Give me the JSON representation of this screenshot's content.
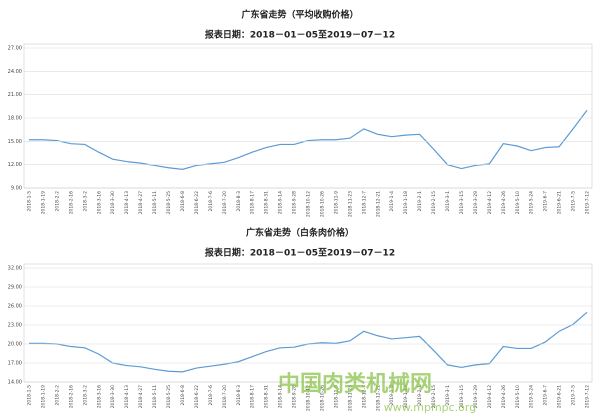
{
  "chart_data": [
    {
      "type": "line",
      "title": "广东省走势（平均收购价格）",
      "subtitle": "报表日期：2018－01－05至2019－07－12",
      "categories": [
        "2018-1-5",
        "2018-1-19",
        "2018-2-2",
        "2018-2-16",
        "2018-3-2",
        "2018-3-16",
        "2018-3-30",
        "2018-4-13",
        "2018-4-27",
        "2018-5-11",
        "2018-5-25",
        "2018-6-8",
        "2018-6-22",
        "2018-7-6",
        "2018-7-20",
        "2018-8-3",
        "2018-8-17",
        "2018-8-31",
        "2018-9-14",
        "2018-9-28",
        "2018-10-12",
        "2018-10-26",
        "2018-11-9",
        "2018-11-23",
        "2018-12-7",
        "2018-12-21",
        "2019-1-4",
        "2019-1-18",
        "2019-2-1",
        "2019-2-15",
        "2019-3-1",
        "2019-3-15",
        "2019-3-29",
        "2019-4-12",
        "2019-4-26",
        "2019-5-10",
        "2019-5-24",
        "2019-6-7",
        "2019-6-21",
        "2019-7-5",
        "2019-7-12"
      ],
      "series": [
        {
          "name": "平均收购价格",
          "color": "#5b9bd5",
          "values": [
            15.2,
            15.2,
            15.1,
            14.7,
            14.6,
            13.6,
            12.7,
            12.4,
            12.2,
            11.9,
            11.6,
            11.4,
            11.9,
            12.1,
            12.3,
            12.9,
            13.6,
            14.2,
            14.6,
            14.6,
            15.1,
            15.2,
            15.2,
            15.4,
            16.6,
            15.9,
            15.6,
            15.8,
            15.9,
            14.0,
            12.0,
            11.5,
            11.9,
            12.1,
            14.7,
            14.4,
            13.8,
            14.2,
            14.3,
            16.6,
            19.0
          ]
        }
      ],
      "ylim": [
        9,
        27
      ],
      "yticks": [
        {
          "value": 9,
          "label": "9.00"
        },
        {
          "value": 12,
          "label": "12.00"
        },
        {
          "value": 15,
          "label": "15.00"
        },
        {
          "value": 18,
          "label": "18.00"
        },
        {
          "value": 21,
          "label": "21.00"
        },
        {
          "value": 24,
          "label": "24.00"
        },
        {
          "value": 27,
          "label": "27.00"
        }
      ],
      "grid": true
    },
    {
      "type": "line",
      "title": "广东省走势（白条肉价格）",
      "subtitle": "报表日期：2018－01－05至2019－07－12",
      "categories": [
        "2018-1-5",
        "2018-1-19",
        "2018-2-2",
        "2018-2-16",
        "2018-3-2",
        "2018-3-16",
        "2018-3-30",
        "2018-4-13",
        "2018-4-27",
        "2018-5-11",
        "2018-5-25",
        "2018-6-8",
        "2018-6-22",
        "2018-7-6",
        "2018-7-20",
        "2018-8-3",
        "2018-8-17",
        "2018-8-31",
        "2018-9-14",
        "2018-9-28",
        "2018-10-12",
        "2018-10-26",
        "2018-11-9",
        "2018-11-23",
        "2018-12-7",
        "2018-12-21",
        "2019-1-4",
        "2019-1-18",
        "2019-2-1",
        "2019-2-15",
        "2019-3-1",
        "2019-3-15",
        "2019-3-29",
        "2019-4-12",
        "2019-4-26",
        "2019-5-10",
        "2019-5-24",
        "2019-6-7",
        "2019-6-21",
        "2019-7-5",
        "2019-7-12"
      ],
      "series": [
        {
          "name": "白条肉价格",
          "color": "#5b9bd5",
          "values": [
            20.1,
            20.1,
            20.0,
            19.6,
            19.4,
            18.4,
            17.0,
            16.6,
            16.4,
            16.0,
            15.7,
            15.6,
            16.2,
            16.5,
            16.8,
            17.2,
            18.0,
            18.8,
            19.4,
            19.5,
            20.0,
            20.2,
            20.1,
            20.5,
            22.0,
            21.3,
            20.8,
            21.0,
            21.2,
            19.0,
            16.7,
            16.3,
            16.7,
            16.9,
            19.6,
            19.3,
            19.3,
            20.3,
            22.0,
            23.1,
            25.0
          ]
        }
      ],
      "ylim": [
        14,
        32
      ],
      "yticks": [
        {
          "value": 14,
          "label": "14.00"
        },
        {
          "value": 17,
          "label": "17.00"
        },
        {
          "value": 20,
          "label": "20.00"
        },
        {
          "value": 23,
          "label": "23.00"
        },
        {
          "value": 26,
          "label": "26.00"
        },
        {
          "value": 29,
          "label": "29.00"
        },
        {
          "value": 32,
          "label": "32.00"
        }
      ],
      "grid": true
    }
  ],
  "watermark": {
    "name": "中国肉类机械网",
    "url": "www.mpmpc.org"
  }
}
